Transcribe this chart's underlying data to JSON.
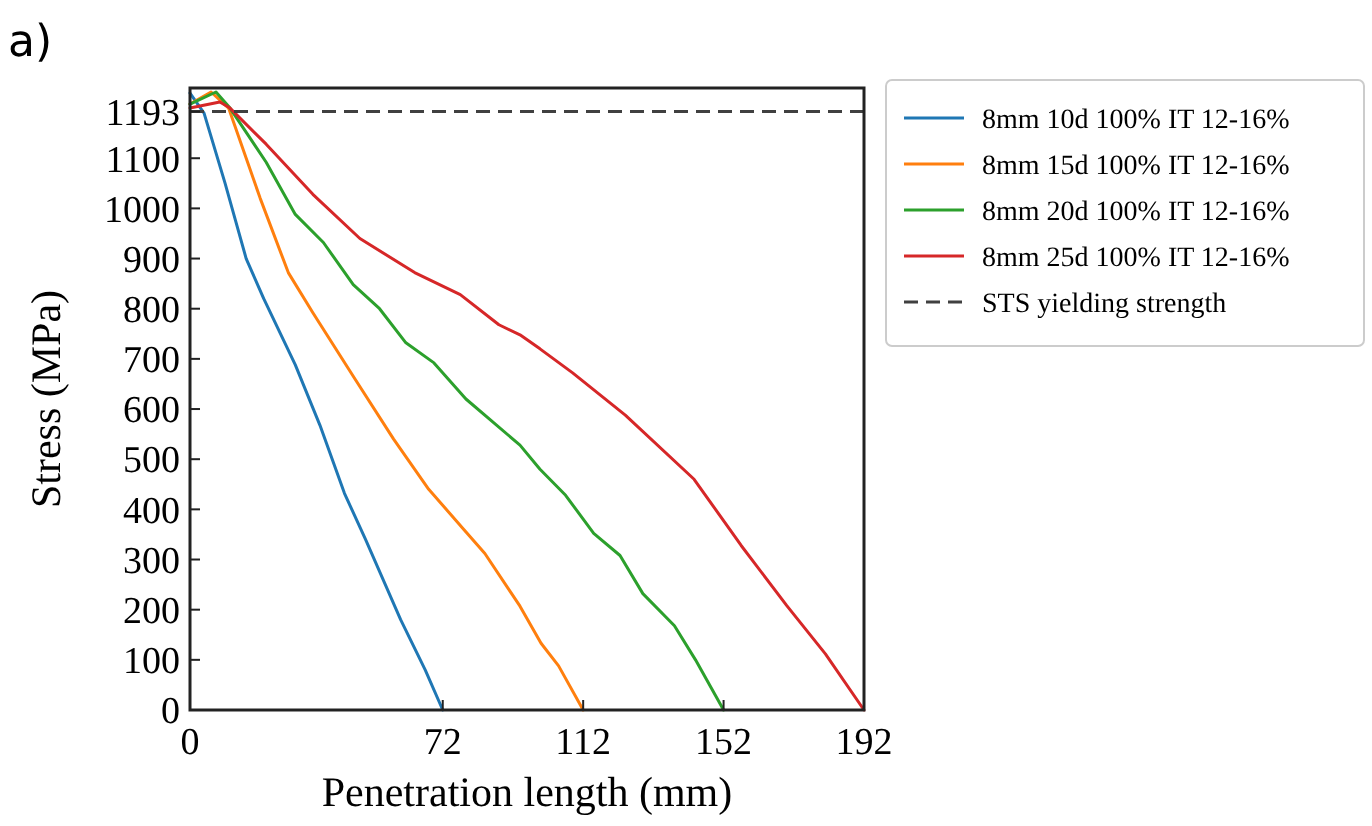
{
  "chart_data": {
    "type": "line",
    "title": "a)",
    "xlabel": "Penetration length (mm)",
    "ylabel": "Stress (MPa)",
    "xlim": [
      0,
      192
    ],
    "ylim": [
      0,
      1240
    ],
    "xticks": [
      0,
      72,
      112,
      152,
      192
    ],
    "yticks": [
      0,
      100,
      200,
      300,
      400,
      500,
      600,
      700,
      800,
      900,
      1000,
      1100,
      1193
    ],
    "legend": "right",
    "grid": false,
    "line_style": "solid",
    "marker": "none",
    "ref_lines": [
      {
        "axis": "y",
        "value": 1193,
        "label": "STS yielding strength",
        "color": "#404040",
        "line_style": "dashed"
      }
    ],
    "series": [
      {
        "name": "8mm 10d 100% IT 12-16%",
        "color": "#1f77b4",
        "x": [
          0,
          4,
          10,
          16,
          21,
          30,
          37,
          44,
          50,
          60,
          67,
          72
        ],
        "values": [
          1230,
          1190,
          1050,
          900,
          820,
          688,
          568,
          432,
          340,
          180,
          80,
          0
        ]
      },
      {
        "name": "8mm 15d 100% IT 12-16%",
        "color": "#ff7f0e",
        "x": [
          0,
          6,
          11,
          20,
          28,
          35,
          47,
          58,
          68,
          78,
          84,
          94,
          100,
          105,
          112
        ],
        "values": [
          1208,
          1232,
          1200,
          1020,
          872,
          792,
          660,
          540,
          440,
          360,
          312,
          207,
          133,
          88,
          0
        ]
      },
      {
        "name": "8mm 20d 100% IT 12-16%",
        "color": "#2ca02c",
        "x": [
          0,
          7.4,
          11.4,
          21.7,
          30,
          38,
          46.5,
          54,
          61.5,
          69.5,
          78.6,
          94,
          99.7,
          107,
          115,
          122.5,
          129,
          138,
          144,
          152
        ],
        "values": [
          1208,
          1232,
          1200,
          1092,
          988,
          932,
          848,
          800,
          732,
          692,
          620,
          528,
          480,
          428,
          352,
          308,
          232,
          168,
          100,
          0
        ]
      },
      {
        "name": "8mm 25d 100% IT 12-16%",
        "color": "#d62728",
        "x": [
          0,
          8.5,
          11.4,
          21.7,
          35,
          48.4,
          64,
          77,
          88,
          94,
          99.7,
          109,
          124,
          143.6,
          157,
          170,
          181,
          192
        ],
        "values": [
          1200,
          1212,
          1200,
          1128,
          1028,
          940,
          872,
          828,
          768,
          748,
          720,
          672,
          588,
          460,
          328,
          208,
          112,
          0
        ]
      }
    ]
  }
}
